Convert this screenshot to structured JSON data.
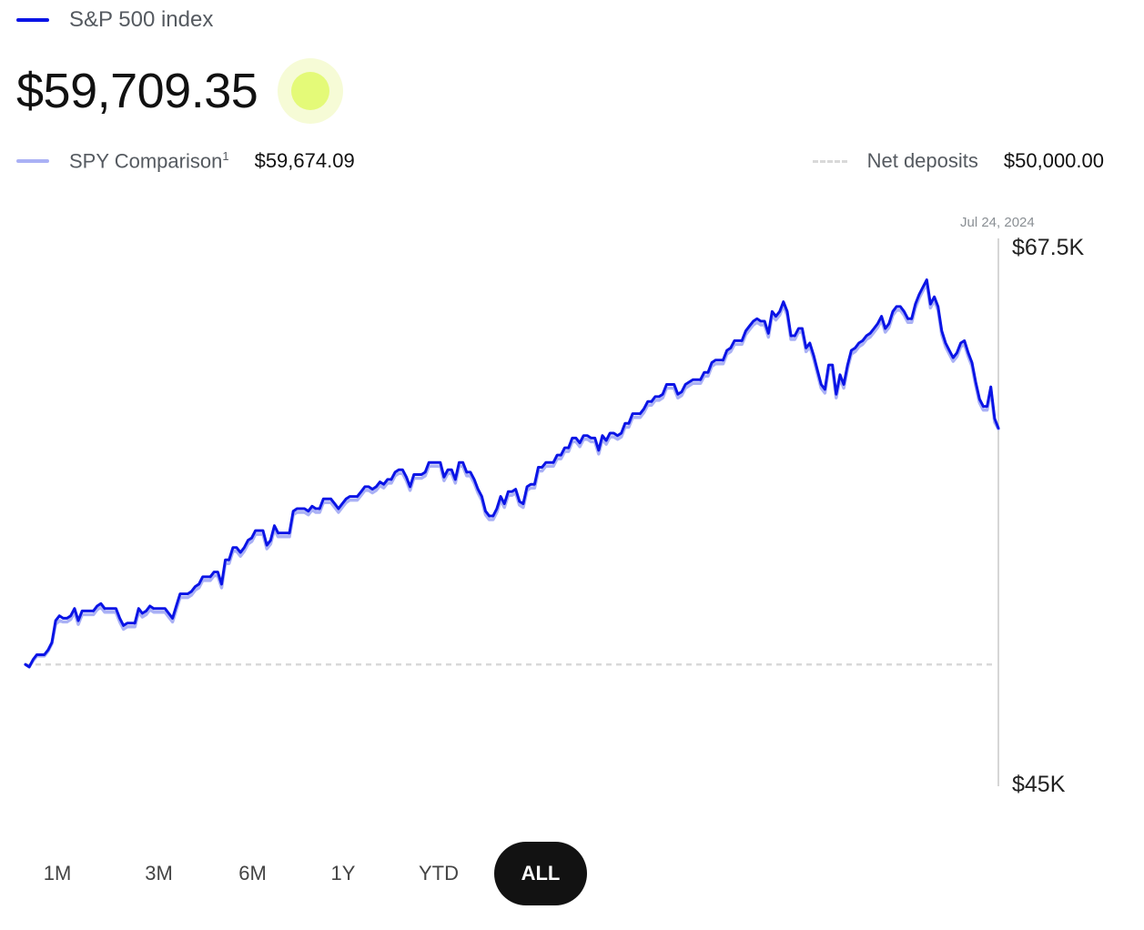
{
  "legend": {
    "main_label": "S&P 500 index",
    "main_value": "$59,709.35",
    "comparison_label": "SPY Comparison",
    "comparison_sup": "1",
    "comparison_value": "$59,674.09",
    "deposits_label": "Net deposits",
    "deposits_value": "$50,000.00"
  },
  "colors": {
    "main_line": "#0a14e6",
    "comparison_line": "#aab1f5",
    "deposits_line": "#d9d9d9",
    "live_dot": "#e4fa78"
  },
  "ranges": {
    "items": [
      "1M",
      "3M",
      "6M",
      "1Y",
      "YTD",
      "ALL"
    ],
    "selected": "ALL"
  },
  "chart_data": {
    "type": "line",
    "date_label": "Jul 24, 2024",
    "ylim": [
      45000,
      67500
    ],
    "y_tick_labels": [
      "$67.5K",
      "$45K"
    ],
    "net_deposits": 50000,
    "series": [
      {
        "name": "S&P 500 index",
        "values": [
          50000,
          49900,
          50200,
          50400,
          50400,
          50400,
          50600,
          50900,
          51800,
          52000,
          51900,
          51900,
          52000,
          52300,
          51800,
          52200,
          52200,
          52200,
          52200,
          52400,
          52500,
          52300,
          52300,
          52300,
          52300,
          51900,
          51600,
          51700,
          51700,
          51700,
          52300,
          52100,
          52200,
          52400,
          52300,
          52300,
          52300,
          52300,
          52100,
          51900,
          52400,
          52900,
          52900,
          52900,
          53000,
          53200,
          53300,
          53600,
          53600,
          53600,
          53800,
          53800,
          53300,
          54300,
          54300,
          54800,
          54800,
          54600,
          54800,
          55100,
          55200,
          55500,
          55500,
          55500,
          54900,
          55100,
          55700,
          55400,
          55400,
          55400,
          55400,
          56300,
          56400,
          56400,
          56400,
          56300,
          56500,
          56400,
          56400,
          56800,
          56800,
          56800,
          56600,
          56400,
          56600,
          56800,
          56900,
          56900,
          56900,
          57100,
          57300,
          57300,
          57200,
          57300,
          57500,
          57400,
          57600,
          57600,
          57900,
          58000,
          58000,
          57700,
          57300,
          57800,
          57800,
          57800,
          57900,
          58300,
          58300,
          58300,
          58300,
          57700,
          58000,
          58000,
          57600,
          58300,
          58300,
          57900,
          57900,
          57600,
          57200,
          56900,
          56300,
          56100,
          56100,
          56400,
          56900,
          56600,
          57100,
          57100,
          57200,
          56700,
          56600,
          57300,
          57400,
          57400,
          58100,
          58100,
          58300,
          58300,
          58300,
          58600,
          58600,
          58900,
          58900,
          59300,
          59300,
          59100,
          59400,
          59400,
          59300,
          59300,
          58800,
          59400,
          59200,
          59500,
          59500,
          59400,
          59500,
          59900,
          59900,
          60300,
          60300,
          60300,
          60500,
          60800,
          60800,
          61000,
          61000,
          61100,
          61500,
          61500,
          61500,
          61100,
          61200,
          61500,
          61600,
          61700,
          61700,
          61700,
          62000,
          62000,
          62400,
          62500,
          62500,
          62500,
          62900,
          63000,
          63300,
          63300,
          63300,
          63700,
          63900,
          64100,
          64200,
          64100,
          64100,
          63600,
          64500,
          64300,
          64500,
          64900,
          64500,
          63500,
          63500,
          63800,
          63800,
          63000,
          63200,
          62700,
          62100,
          61500,
          61300,
          62300,
          62300,
          61100,
          61900,
          61500,
          62300,
          62900,
          63000,
          63200,
          63300,
          63500,
          63600,
          63800,
          64000,
          64300,
          63800,
          64000,
          64500,
          64700,
          64700,
          64500,
          64200,
          64200,
          64800,
          65200,
          65500,
          65800,
          64800,
          65100,
          64700,
          63700,
          63200,
          62900,
          62600,
          62800,
          63200,
          63300,
          62800,
          62400,
          61600,
          60900,
          60600,
          60600,
          61400,
          60100,
          59709
        ]
      },
      {
        "name": "SPY Comparison",
        "values": [
          50000,
          49900,
          50150,
          50350,
          50350,
          50350,
          50550,
          50850,
          51650,
          51800,
          51750,
          51750,
          51850,
          52150,
          51650,
          52050,
          52050,
          52050,
          52050,
          52250,
          52350,
          52150,
          52150,
          52150,
          52150,
          51750,
          51450,
          51550,
          51550,
          51550,
          52150,
          51950,
          52050,
          52250,
          52150,
          52150,
          52150,
          52150,
          51950,
          51750,
          52250,
          52750,
          52750,
          52750,
          52850,
          53050,
          53150,
          53450,
          53450,
          53450,
          53650,
          53650,
          53150,
          54150,
          54150,
          54650,
          54650,
          54450,
          54650,
          54950,
          55050,
          55350,
          55350,
          55350,
          54750,
          54950,
          55550,
          55250,
          55250,
          55250,
          55250,
          56150,
          56250,
          56250,
          56250,
          56150,
          56350,
          56250,
          56250,
          56650,
          56650,
          56650,
          56450,
          56250,
          56450,
          56650,
          56750,
          56750,
          56750,
          56950,
          57150,
          57150,
          57050,
          57150,
          57350,
          57250,
          57450,
          57450,
          57750,
          57850,
          57850,
          57550,
          57150,
          57650,
          57650,
          57650,
          57750,
          58150,
          58150,
          58150,
          58150,
          57550,
          57850,
          57850,
          57450,
          58150,
          58150,
          57750,
          57750,
          57450,
          57050,
          56750,
          56150,
          55950,
          55950,
          56250,
          56750,
          56450,
          56950,
          56950,
          57050,
          56550,
          56450,
          57150,
          57250,
          57250,
          57950,
          57950,
          58150,
          58150,
          58150,
          58450,
          58450,
          58750,
          58750,
          59150,
          59150,
          58950,
          59250,
          59250,
          59150,
          59150,
          58650,
          59250,
          59050,
          59350,
          59350,
          59250,
          59350,
          59750,
          59750,
          60150,
          60150,
          60150,
          60350,
          60650,
          60650,
          60850,
          60850,
          60950,
          61350,
          61350,
          61350,
          60950,
          61050,
          61350,
          61450,
          61550,
          61550,
          61550,
          61850,
          61850,
          62250,
          62350,
          62350,
          62350,
          62750,
          62850,
          63150,
          63150,
          63150,
          63550,
          63750,
          63950,
          64050,
          63950,
          63950,
          63450,
          64350,
          64150,
          64350,
          64750,
          64350,
          63350,
          63350,
          63650,
          63650,
          62850,
          63050,
          62550,
          61950,
          61350,
          61150,
          62150,
          62150,
          60950,
          61750,
          61350,
          62150,
          62750,
          62850,
          63050,
          63150,
          63350,
          63450,
          63650,
          63850,
          64150,
          63650,
          63850,
          64350,
          64550,
          64550,
          64350,
          64050,
          64050,
          64650,
          65050,
          65350,
          65650,
          64650,
          64950,
          64550,
          63550,
          63050,
          62750,
          62450,
          62650,
          63050,
          63150,
          62650,
          62250,
          61450,
          60750,
          60450,
          60450,
          61250,
          59950,
          59674
        ]
      }
    ]
  }
}
